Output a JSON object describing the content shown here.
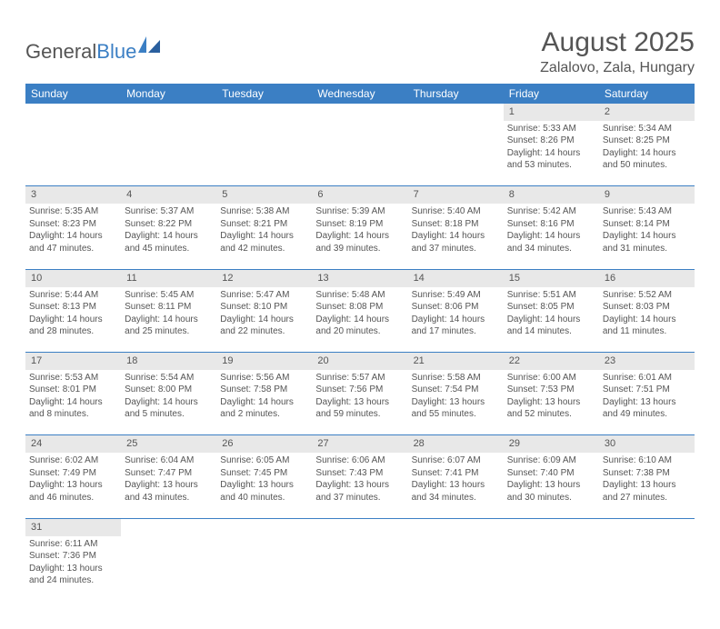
{
  "logo": {
    "text1": "General",
    "text2": "Blue"
  },
  "title": "August 2025",
  "location": "Zalalovo, Zala, Hungary",
  "columns": [
    "Sunday",
    "Monday",
    "Tuesday",
    "Wednesday",
    "Thursday",
    "Friday",
    "Saturday"
  ],
  "colors": {
    "header_bg": "#3b7fc4",
    "header_text": "#ffffff",
    "daynum_bg": "#e8e8e8",
    "border": "#3b7fc4",
    "text": "#555555"
  },
  "weeks": [
    {
      "nums": [
        "",
        "",
        "",
        "",
        "",
        "1",
        "2"
      ],
      "cells": [
        null,
        null,
        null,
        null,
        null,
        {
          "sunrise": "5:33 AM",
          "sunset": "8:26 PM",
          "dl1": "Daylight: 14 hours",
          "dl2": "and 53 minutes."
        },
        {
          "sunrise": "5:34 AM",
          "sunset": "8:25 PM",
          "dl1": "Daylight: 14 hours",
          "dl2": "and 50 minutes."
        }
      ]
    },
    {
      "nums": [
        "3",
        "4",
        "5",
        "6",
        "7",
        "8",
        "9"
      ],
      "cells": [
        {
          "sunrise": "5:35 AM",
          "sunset": "8:23 PM",
          "dl1": "Daylight: 14 hours",
          "dl2": "and 47 minutes."
        },
        {
          "sunrise": "5:37 AM",
          "sunset": "8:22 PM",
          "dl1": "Daylight: 14 hours",
          "dl2": "and 45 minutes."
        },
        {
          "sunrise": "5:38 AM",
          "sunset": "8:21 PM",
          "dl1": "Daylight: 14 hours",
          "dl2": "and 42 minutes."
        },
        {
          "sunrise": "5:39 AM",
          "sunset": "8:19 PM",
          "dl1": "Daylight: 14 hours",
          "dl2": "and 39 minutes."
        },
        {
          "sunrise": "5:40 AM",
          "sunset": "8:18 PM",
          "dl1": "Daylight: 14 hours",
          "dl2": "and 37 minutes."
        },
        {
          "sunrise": "5:42 AM",
          "sunset": "8:16 PM",
          "dl1": "Daylight: 14 hours",
          "dl2": "and 34 minutes."
        },
        {
          "sunrise": "5:43 AM",
          "sunset": "8:14 PM",
          "dl1": "Daylight: 14 hours",
          "dl2": "and 31 minutes."
        }
      ]
    },
    {
      "nums": [
        "10",
        "11",
        "12",
        "13",
        "14",
        "15",
        "16"
      ],
      "cells": [
        {
          "sunrise": "5:44 AM",
          "sunset": "8:13 PM",
          "dl1": "Daylight: 14 hours",
          "dl2": "and 28 minutes."
        },
        {
          "sunrise": "5:45 AM",
          "sunset": "8:11 PM",
          "dl1": "Daylight: 14 hours",
          "dl2": "and 25 minutes."
        },
        {
          "sunrise": "5:47 AM",
          "sunset": "8:10 PM",
          "dl1": "Daylight: 14 hours",
          "dl2": "and 22 minutes."
        },
        {
          "sunrise": "5:48 AM",
          "sunset": "8:08 PM",
          "dl1": "Daylight: 14 hours",
          "dl2": "and 20 minutes."
        },
        {
          "sunrise": "5:49 AM",
          "sunset": "8:06 PM",
          "dl1": "Daylight: 14 hours",
          "dl2": "and 17 minutes."
        },
        {
          "sunrise": "5:51 AM",
          "sunset": "8:05 PM",
          "dl1": "Daylight: 14 hours",
          "dl2": "and 14 minutes."
        },
        {
          "sunrise": "5:52 AM",
          "sunset": "8:03 PM",
          "dl1": "Daylight: 14 hours",
          "dl2": "and 11 minutes."
        }
      ]
    },
    {
      "nums": [
        "17",
        "18",
        "19",
        "20",
        "21",
        "22",
        "23"
      ],
      "cells": [
        {
          "sunrise": "5:53 AM",
          "sunset": "8:01 PM",
          "dl1": "Daylight: 14 hours",
          "dl2": "and 8 minutes."
        },
        {
          "sunrise": "5:54 AM",
          "sunset": "8:00 PM",
          "dl1": "Daylight: 14 hours",
          "dl2": "and 5 minutes."
        },
        {
          "sunrise": "5:56 AM",
          "sunset": "7:58 PM",
          "dl1": "Daylight: 14 hours",
          "dl2": "and 2 minutes."
        },
        {
          "sunrise": "5:57 AM",
          "sunset": "7:56 PM",
          "dl1": "Daylight: 13 hours",
          "dl2": "and 59 minutes."
        },
        {
          "sunrise": "5:58 AM",
          "sunset": "7:54 PM",
          "dl1": "Daylight: 13 hours",
          "dl2": "and 55 minutes."
        },
        {
          "sunrise": "6:00 AM",
          "sunset": "7:53 PM",
          "dl1": "Daylight: 13 hours",
          "dl2": "and 52 minutes."
        },
        {
          "sunrise": "6:01 AM",
          "sunset": "7:51 PM",
          "dl1": "Daylight: 13 hours",
          "dl2": "and 49 minutes."
        }
      ]
    },
    {
      "nums": [
        "24",
        "25",
        "26",
        "27",
        "28",
        "29",
        "30"
      ],
      "cells": [
        {
          "sunrise": "6:02 AM",
          "sunset": "7:49 PM",
          "dl1": "Daylight: 13 hours",
          "dl2": "and 46 minutes."
        },
        {
          "sunrise": "6:04 AM",
          "sunset": "7:47 PM",
          "dl1": "Daylight: 13 hours",
          "dl2": "and 43 minutes."
        },
        {
          "sunrise": "6:05 AM",
          "sunset": "7:45 PM",
          "dl1": "Daylight: 13 hours",
          "dl2": "and 40 minutes."
        },
        {
          "sunrise": "6:06 AM",
          "sunset": "7:43 PM",
          "dl1": "Daylight: 13 hours",
          "dl2": "and 37 minutes."
        },
        {
          "sunrise": "6:07 AM",
          "sunset": "7:41 PM",
          "dl1": "Daylight: 13 hours",
          "dl2": "and 34 minutes."
        },
        {
          "sunrise": "6:09 AM",
          "sunset": "7:40 PM",
          "dl1": "Daylight: 13 hours",
          "dl2": "and 30 minutes."
        },
        {
          "sunrise": "6:10 AM",
          "sunset": "7:38 PM",
          "dl1": "Daylight: 13 hours",
          "dl2": "and 27 minutes."
        }
      ]
    },
    {
      "nums": [
        "31",
        "",
        "",
        "",
        "",
        "",
        ""
      ],
      "cells": [
        {
          "sunrise": "6:11 AM",
          "sunset": "7:36 PM",
          "dl1": "Daylight: 13 hours",
          "dl2": "and 24 minutes."
        },
        null,
        null,
        null,
        null,
        null,
        null
      ],
      "noborder": true
    }
  ]
}
